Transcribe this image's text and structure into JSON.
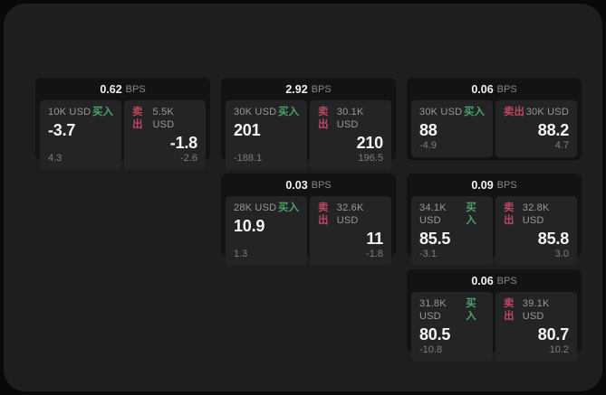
{
  "labels": {
    "bps_unit": "BPS",
    "buy": "买入",
    "sell": "卖出"
  },
  "colors": {
    "page_bg": "#09090a",
    "panel_bg": "#1e1e1f",
    "card_bg": "#131314",
    "tile_bg": "#242426",
    "buy_accent": "#4aa36a",
    "sell_accent": "#bb4760",
    "primary_text": "#f5f5f6",
    "muted_text": "#98989c"
  },
  "cards": [
    {
      "bps": "0.62",
      "buy": {
        "amount": "10K USD",
        "price": "-3.7",
        "delta": "4.3"
      },
      "sell": {
        "amount": "5.5K USD",
        "price": "-1.8",
        "delta": "-2.6"
      }
    },
    {
      "bps": "2.92",
      "buy": {
        "amount": "30K USD",
        "price": "201",
        "delta": "-188.1"
      },
      "sell": {
        "amount": "30.1K USD",
        "price": "210",
        "delta": "196.5"
      }
    },
    {
      "bps": "0.06",
      "buy": {
        "amount": "30K USD",
        "price": "88",
        "delta": "-4.9"
      },
      "sell": {
        "amount": "30K USD",
        "price": "88.2",
        "delta": "4.7"
      }
    },
    {
      "bps": "0.03",
      "buy": {
        "amount": "28K USD",
        "price": "10.9",
        "delta": "1.3"
      },
      "sell": {
        "amount": "32.6K USD",
        "price": "11",
        "delta": "-1.8"
      }
    },
    {
      "bps": "0.09",
      "buy": {
        "amount": "34.1K USD",
        "price": "85.5",
        "delta": "-3.1"
      },
      "sell": {
        "amount": "32.8K USD",
        "price": "85.8",
        "delta": "3.0"
      }
    },
    {
      "bps": "0.06",
      "buy": {
        "amount": "31.8K USD",
        "price": "80.5",
        "delta": "-10.8"
      },
      "sell": {
        "amount": "39.1K USD",
        "price": "80.7",
        "delta": "10.2"
      }
    }
  ]
}
